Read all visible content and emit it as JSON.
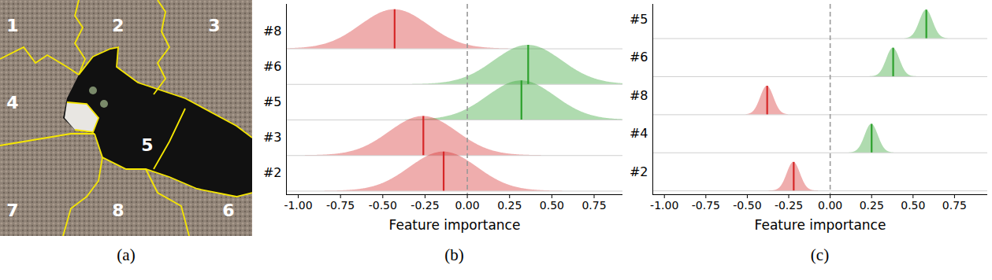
{
  "image": {
    "caption": "(a)",
    "segment_labels": [
      "1",
      "2",
      "3",
      "4",
      "5",
      "6",
      "7",
      "8"
    ]
  },
  "chart_data": [
    {
      "type": "ridgeline",
      "caption": "(b)",
      "x_label": "Feature importance",
      "categories": [
        "#8",
        "#6",
        "#5",
        "#3",
        "#2"
      ],
      "means": [
        -0.43,
        0.36,
        0.32,
        -0.26,
        -0.14
      ],
      "std": [
        0.2,
        0.2,
        0.2,
        0.2,
        0.2
      ],
      "colors": [
        "#d62728",
        "#2ca02c",
        "#2ca02c",
        "#d62728",
        "#d62728"
      ],
      "reference_x": 0,
      "xlim": [
        -1.07,
        0.92
      ],
      "xticks": [
        {
          "value": -1,
          "label": "-1.00"
        },
        {
          "value": -0.75,
          "label": "-0.75"
        },
        {
          "value": -0.5,
          "label": "-0.50"
        },
        {
          "value": -0.25,
          "label": "-0.25"
        },
        {
          "value": 0,
          "label": "0.00"
        },
        {
          "value": 0.25,
          "label": "0.25"
        },
        {
          "value": 0.5,
          "label": "0.50"
        },
        {
          "value": 0.75,
          "label": "0.75"
        }
      ]
    },
    {
      "type": "ridgeline",
      "caption": "(c)",
      "x_label": "Feature importance",
      "categories": [
        "#5",
        "#6",
        "#8",
        "#4",
        "#2"
      ],
      "means": [
        0.58,
        0.38,
        -0.38,
        0.25,
        -0.22
      ],
      "std": [
        0.04,
        0.04,
        0.04,
        0.04,
        0.04
      ],
      "colors": [
        "#2ca02c",
        "#2ca02c",
        "#d62728",
        "#2ca02c",
        "#d62728"
      ],
      "reference_x": 0,
      "xlim": [
        -1.07,
        0.95
      ],
      "xticks": [
        {
          "value": -1,
          "label": "-1.00"
        },
        {
          "value": -0.75,
          "label": "-0.75"
        },
        {
          "value": -0.5,
          "label": "-0.50"
        },
        {
          "value": -0.25,
          "label": "-0.25"
        },
        {
          "value": 0,
          "label": "0.00"
        },
        {
          "value": 0.25,
          "label": "0.25"
        },
        {
          "value": 0.5,
          "label": "0.50"
        },
        {
          "value": 0.75,
          "label": "0.75"
        }
      ]
    }
  ]
}
